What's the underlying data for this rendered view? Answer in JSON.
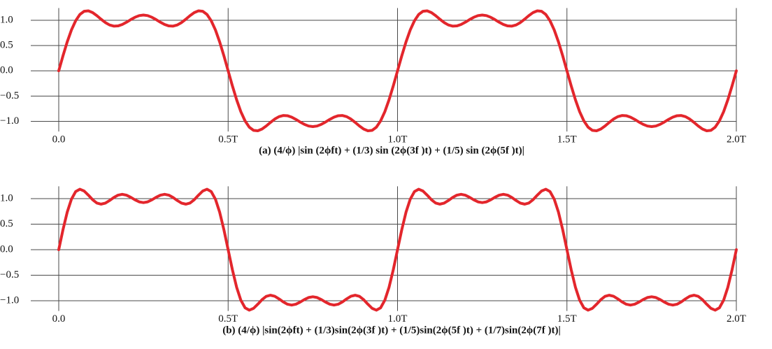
{
  "chart_data": [
    {
      "type": "line",
      "xlabel": "(a) (4/ϕ) |sin (2ϕft) + (1/3) sin (2ϕ(3f )t) + (1/5) sin (2ϕ(5f )t)|",
      "color": "#e3262c",
      "grid": true,
      "xlim": [
        0,
        2
      ],
      "ylim": [
        -1.2,
        1.2
      ],
      "xticks": [
        {
          "value": 0,
          "label": "0.0"
        },
        {
          "value": 0.5,
          "label": "0.5T"
        },
        {
          "value": 1,
          "label": "1.0T"
        },
        {
          "value": 1.5,
          "label": "1.5T"
        },
        {
          "value": 2,
          "label": "2.0T"
        }
      ],
      "yticks": [
        {
          "value": 1,
          "label": "1.0"
        },
        0.5,
        {
          "value": 0,
          "label": "0.0"
        },
        {
          "value": -0.5,
          "label": "−0.5"
        },
        {
          "value": -1,
          "label": "−1.0"
        }
      ],
      "x": [
        0,
        0.0125,
        0.025,
        0.0375,
        0.05,
        0.0625,
        0.075,
        0.0875,
        0.1,
        0.1125,
        0.125,
        0.1375,
        0.15,
        0.1625,
        0.175,
        0.1875,
        0.2,
        0.2125,
        0.225,
        0.2375,
        0.25,
        0.2625,
        0.275,
        0.2875,
        0.3,
        0.3125,
        0.325,
        0.3375,
        0.35,
        0.3625,
        0.375,
        0.3875,
        0.4,
        0.4125,
        0.425,
        0.4375,
        0.45,
        0.4625,
        0.475,
        0.4875,
        0.5,
        0.5125,
        0.525,
        0.5375,
        0.55,
        0.5625,
        0.575,
        0.5875,
        0.6,
        0.6125,
        0.625,
        0.6375,
        0.65,
        0.6625,
        0.675,
        0.6875,
        0.7,
        0.7125,
        0.725,
        0.7375,
        0.75,
        0.7625,
        0.775,
        0.7875,
        0.8,
        0.8125,
        0.825,
        0.8375,
        0.85,
        0.8625,
        0.875,
        0.8875,
        0.9,
        0.9125,
        0.925,
        0.9375,
        0.95,
        0.9625,
        0.975,
        0.9875,
        1,
        1.0125,
        1.025,
        1.0375,
        1.05,
        1.0625,
        1.075,
        1.0875,
        1.1,
        1.1125,
        1.125,
        1.1375,
        1.15,
        1.1625,
        1.175,
        1.1875,
        1.2,
        1.2125,
        1.225,
        1.2375,
        1.25,
        1.2625,
        1.275,
        1.2875,
        1.3,
        1.3125,
        1.325,
        1.3375,
        1.35,
        1.3625,
        1.375,
        1.3875,
        1.4,
        1.4125,
        1.425,
        1.4375,
        1.45,
        1.4625,
        1.475,
        1.4875,
        1.5,
        1.5125,
        1.525,
        1.5375,
        1.55,
        1.5625,
        1.575,
        1.5875,
        1.6,
        1.6125,
        1.625,
        1.6375,
        1.65,
        1.6625,
        1.675,
        1.6875,
        1.7,
        1.7125,
        1.725,
        1.7375,
        1.75,
        1.7625,
        1.775,
        1.7875,
        1.8,
        1.8125,
        1.825,
        1.8375,
        1.85,
        1.8625,
        1.875,
        1.8875,
        1.9,
        1.9125,
        1.925,
        1.9375,
        1.95,
        1.9625,
        1.975,
        1.9875,
        2
      ],
      "values": [
        0,
        0.296,
        0.572,
        0.808,
        0.991,
        1.115,
        1.177,
        1.186,
        1.152,
        1.091,
        1.02,
        0.955,
        0.907,
        0.884,
        0.888,
        0.916,
        0.961,
        1.013,
        1.059,
        1.092,
        1.103,
        1.092,
        1.059,
        1.013,
        0.961,
        0.916,
        0.888,
        0.884,
        0.907,
        0.955,
        1.02,
        1.091,
        1.152,
        1.186,
        1.177,
        1.115,
        0.991,
        0.808,
        0.572,
        0.296,
        0,
        -0.296,
        -0.572,
        -0.808,
        -0.991,
        -1.115,
        -1.177,
        -1.186,
        -1.152,
        -1.091,
        -1.02,
        -0.955,
        -0.907,
        -0.884,
        -0.888,
        -0.916,
        -0.961,
        -1.013,
        -1.059,
        -1.092,
        -1.103,
        -1.092,
        -1.059,
        -1.013,
        -0.961,
        -0.916,
        -0.888,
        -0.884,
        -0.907,
        -0.955,
        -1.02,
        -1.091,
        -1.152,
        -1.186,
        -1.177,
        -1.115,
        -0.991,
        -0.808,
        -0.572,
        -0.296,
        0,
        0.296,
        0.572,
        0.808,
        0.991,
        1.115,
        1.177,
        1.186,
        1.152,
        1.091,
        1.02,
        0.955,
        0.907,
        0.884,
        0.888,
        0.916,
        0.961,
        1.013,
        1.059,
        1.092,
        1.103,
        1.092,
        1.059,
        1.013,
        0.961,
        0.916,
        0.888,
        0.884,
        0.907,
        0.955,
        1.02,
        1.091,
        1.152,
        1.186,
        1.177,
        1.115,
        0.991,
        0.808,
        0.572,
        0.296,
        0,
        -0.296,
        -0.572,
        -0.808,
        -0.991,
        -1.115,
        -1.177,
        -1.186,
        -1.152,
        -1.091,
        -1.02,
        -0.955,
        -0.907,
        -0.884,
        -0.888,
        -0.916,
        -0.961,
        -1.013,
        -1.059,
        -1.092,
        -1.103,
        -1.092,
        -1.059,
        -1.013,
        -0.961,
        -0.916,
        -0.888,
        -0.884,
        -0.907,
        -0.955,
        -1.02,
        -1.091,
        -1.152,
        -1.186,
        -1.177,
        -1.115,
        -0.991,
        -0.808,
        -0.572,
        -0.296,
        0
      ]
    },
    {
      "type": "line",
      "xlabel": "(b) (4/ϕ) |sin(2ϕft) + (1/3)sin(2ϕ(3f )t) + (1/5)sin(2ϕ(5f )t) + (1/7)sin(2ϕ(7f )t)|",
      "color": "#e3262c",
      "grid": true,
      "xlim": [
        0,
        2
      ],
      "ylim": [
        -1.2,
        1.2
      ],
      "xticks": [
        {
          "value": 0,
          "label": "0.0"
        },
        {
          "value": 0.5,
          "label": "0.5T"
        },
        {
          "value": 1,
          "label": "1.0T"
        },
        {
          "value": 1.5,
          "label": "1.5T"
        },
        {
          "value": 2,
          "label": "2.0T"
        }
      ],
      "yticks": [
        {
          "value": 1,
          "label": "1.0"
        },
        0.5,
        {
          "value": 0,
          "label": "0.0"
        },
        {
          "value": -0.5,
          "label": "−0.5"
        },
        {
          "value": -1,
          "label": "−1.0"
        }
      ],
      "x": [
        0,
        0.0125,
        0.025,
        0.0375,
        0.05,
        0.0625,
        0.075,
        0.0875,
        0.1,
        0.1125,
        0.125,
        0.1375,
        0.15,
        0.1625,
        0.175,
        0.1875,
        0.2,
        0.2125,
        0.225,
        0.2375,
        0.25,
        0.2625,
        0.275,
        0.2875,
        0.3,
        0.3125,
        0.325,
        0.3375,
        0.35,
        0.3625,
        0.375,
        0.3875,
        0.4,
        0.4125,
        0.425,
        0.4375,
        0.45,
        0.4625,
        0.475,
        0.4875,
        0.5,
        0.5125,
        0.525,
        0.5375,
        0.55,
        0.5625,
        0.575,
        0.5875,
        0.6,
        0.6125,
        0.625,
        0.6375,
        0.65,
        0.6625,
        0.675,
        0.6875,
        0.7,
        0.7125,
        0.725,
        0.7375,
        0.75,
        0.7625,
        0.775,
        0.7875,
        0.8,
        0.8125,
        0.825,
        0.8375,
        0.85,
        0.8625,
        0.875,
        0.8875,
        0.9,
        0.9125,
        0.925,
        0.9375,
        0.95,
        0.9625,
        0.975,
        0.9875,
        1,
        1.0125,
        1.025,
        1.0375,
        1.05,
        1.0625,
        1.075,
        1.0875,
        1.1,
        1.1125,
        1.125,
        1.1375,
        1.15,
        1.1625,
        1.175,
        1.1875,
        1.2,
        1.2125,
        1.225,
        1.2375,
        1.25,
        1.2625,
        1.275,
        1.2875,
        1.3,
        1.3125,
        1.325,
        1.3375,
        1.35,
        1.3625,
        1.375,
        1.3875,
        1.4,
        1.4125,
        1.425,
        1.4375,
        1.45,
        1.4625,
        1.475,
        1.4875,
        1.5,
        1.5125,
        1.525,
        1.5375,
        1.55,
        1.5625,
        1.575,
        1.5875,
        1.6,
        1.6125,
        1.625,
        1.6375,
        1.65,
        1.6625,
        1.675,
        1.6875,
        1.7,
        1.7125,
        1.725,
        1.7375,
        1.75,
        1.7625,
        1.775,
        1.7875,
        1.8,
        1.8125,
        1.825,
        1.8375,
        1.85,
        1.8625,
        1.875,
        1.8875,
        1.9,
        1.9125,
        1.925,
        1.9375,
        1.95,
        1.9625,
        1.975,
        1.9875,
        2
      ],
      "values": [
        0,
        0.391,
        0.734,
        0.989,
        1.139,
        1.184,
        1.149,
        1.068,
        0.979,
        0.914,
        0.892,
        0.912,
        0.963,
        1.022,
        1.068,
        1.085,
        1.068,
        1.027,
        0.977,
        0.937,
        0.922,
        0.937,
        0.977,
        1.027,
        1.068,
        1.085,
        1.068,
        1.022,
        0.963,
        0.912,
        0.892,
        0.914,
        0.979,
        1.068,
        1.149,
        1.184,
        1.139,
        0.989,
        0.734,
        0.391,
        0,
        -0.391,
        -0.734,
        -0.989,
        -1.139,
        -1.184,
        -1.149,
        -1.068,
        -0.979,
        -0.914,
        -0.892,
        -0.912,
        -0.963,
        -1.022,
        -1.068,
        -1.085,
        -1.068,
        -1.027,
        -0.977,
        -0.937,
        -0.922,
        -0.937,
        -0.977,
        -1.027,
        -1.068,
        -1.085,
        -1.068,
        -1.022,
        -0.963,
        -0.912,
        -0.892,
        -0.914,
        -0.979,
        -1.068,
        -1.149,
        -1.184,
        -1.139,
        -0.989,
        -0.734,
        -0.391,
        0,
        0.391,
        0.734,
        0.989,
        1.139,
        1.184,
        1.149,
        1.068,
        0.979,
        0.914,
        0.892,
        0.912,
        0.963,
        1.022,
        1.068,
        1.085,
        1.068,
        1.027,
        0.977,
        0.937,
        0.922,
        0.937,
        0.977,
        1.027,
        1.068,
        1.085,
        1.068,
        1.022,
        0.963,
        0.912,
        0.892,
        0.914,
        0.979,
        1.068,
        1.149,
        1.184,
        1.139,
        0.989,
        0.734,
        0.391,
        0,
        -0.391,
        -0.734,
        -0.989,
        -1.139,
        -1.184,
        -1.149,
        -1.068,
        -0.979,
        -0.914,
        -0.892,
        -0.912,
        -0.963,
        -1.022,
        -1.068,
        -1.085,
        -1.068,
        -1.027,
        -0.977,
        -0.937,
        -0.922,
        -0.937,
        -0.977,
        -1.027,
        -1.068,
        -1.085,
        -1.068,
        -1.022,
        -0.963,
        -0.912,
        -0.892,
        -0.914,
        -0.979,
        -1.068,
        -1.149,
        -1.184,
        -1.139,
        -0.989,
        -0.734,
        -0.391,
        0
      ]
    }
  ]
}
